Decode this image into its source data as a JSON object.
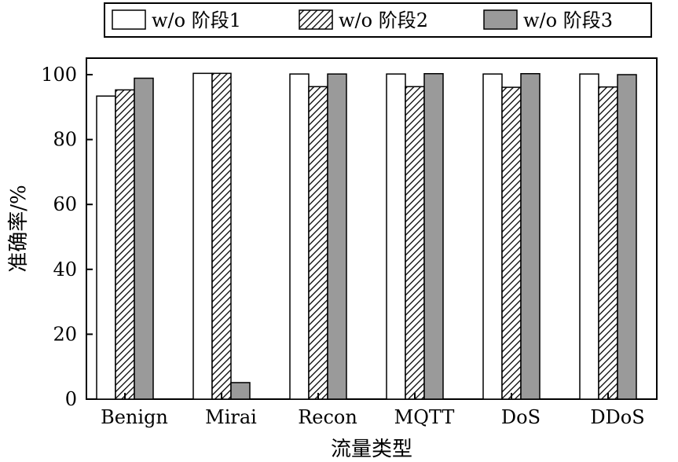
{
  "chart_data": {
    "type": "bar",
    "title": "",
    "xlabel": "流量类型",
    "ylabel": "准确率/%",
    "ylim": [
      0,
      100
    ],
    "yticks": [
      0,
      20,
      40,
      60,
      80,
      100
    ],
    "grid": false,
    "legend_position": "top",
    "categories": [
      "Benign",
      "Mirai",
      "Recon",
      "MQTT",
      "DoS",
      "DDoS"
    ],
    "series": [
      {
        "name": "w/o 阶段1",
        "fill": "white",
        "color": "#ffffff",
        "values": [
          93.4,
          100.4,
          100.2,
          100.2,
          100.2,
          100.2
        ]
      },
      {
        "name": "w/o 阶段2",
        "fill": "hatch",
        "color": "#000000",
        "values": [
          95.3,
          100.4,
          96.3,
          96.3,
          96.1,
          96.2
        ]
      },
      {
        "name": "w/o 阶段3",
        "fill": "solid",
        "color": "#9a9a9a",
        "values": [
          98.9,
          5.1,
          100.2,
          100.3,
          100.3,
          100.0
        ]
      }
    ]
  }
}
